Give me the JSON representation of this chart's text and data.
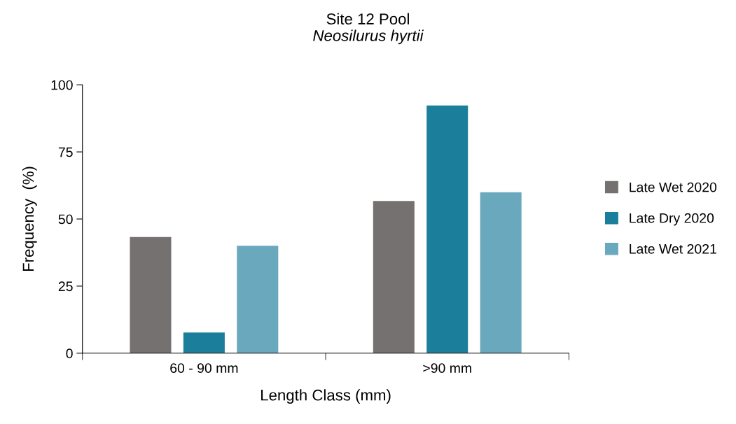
{
  "chart_data": {
    "type": "bar",
    "title": "Site 12 Pool",
    "subtitle": "Neosilurus hyrtii",
    "categories": [
      "60 - 90 mm",
      ">90 mm"
    ],
    "series": [
      {
        "name": "Late Wet 2020",
        "color": "#767171",
        "values": [
          43.3,
          56.7
        ]
      },
      {
        "name": "Late Dry 2020",
        "color": "#1b7f9c",
        "values": [
          7.7,
          92.3
        ]
      },
      {
        "name": "Late Wet 2021",
        "color": "#6aa9bd",
        "values": [
          40,
          60
        ]
      }
    ],
    "xlabel": "Length Class (mm)",
    "ylabel": "Frequency  (%)",
    "ylim": [
      0,
      100
    ],
    "yticks": [
      0,
      25,
      50,
      75,
      100
    ],
    "grid": false,
    "legend": "right"
  }
}
